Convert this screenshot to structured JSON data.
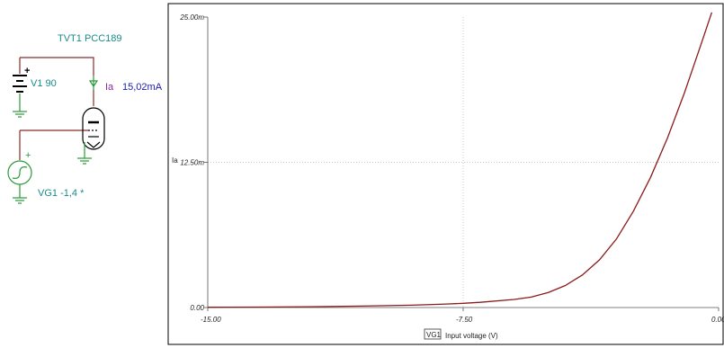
{
  "schematic": {
    "tube_label": "TVT1 PCC189",
    "supply_label": "V1 90",
    "supply_polarity": "+",
    "meter_name": "Ia",
    "meter_value": "15,02mA",
    "source_label": "VG1 -1,4 *",
    "source_polarity": "+",
    "colors": {
      "label": "#1a8a8a",
      "wire": "#8b2a2a",
      "ground": "#2a9a3a",
      "meter_name": "#8a2aa0",
      "meter_value": "#1a1ab0"
    }
  },
  "chart_data": {
    "type": "line",
    "ylabel": "Ia",
    "xlabel_tag": "VG1",
    "xlabel": "Input voltage (V)",
    "x_ticks": [
      "-15.00",
      "-7.50",
      "0.00"
    ],
    "y_ticks": [
      "0.00",
      "12.50m",
      "25.00m"
    ],
    "xlim": [
      -15,
      0
    ],
    "ylim": [
      0,
      0.025
    ],
    "grid": true,
    "series": [
      {
        "color": "#8b1a1a",
        "x": [
          -15.0,
          -13.5,
          -12.0,
          -10.5,
          -9.0,
          -8.0,
          -7.5,
          -7.0,
          -6.0,
          -5.5,
          -5.0,
          -4.5,
          -4.0,
          -3.5,
          -3.0,
          -2.5,
          -2.0,
          -1.5,
          -1.0,
          -0.5,
          -0.2
        ],
        "y": [
          2e-05,
          4e-05,
          7e-05,
          0.00012,
          0.0002,
          0.0003,
          0.00036,
          0.00045,
          0.0007,
          0.0009,
          0.0013,
          0.0019,
          0.0028,
          0.0041,
          0.0059,
          0.0083,
          0.0112,
          0.0146,
          0.0185,
          0.0228,
          0.0254
        ]
      }
    ]
  }
}
